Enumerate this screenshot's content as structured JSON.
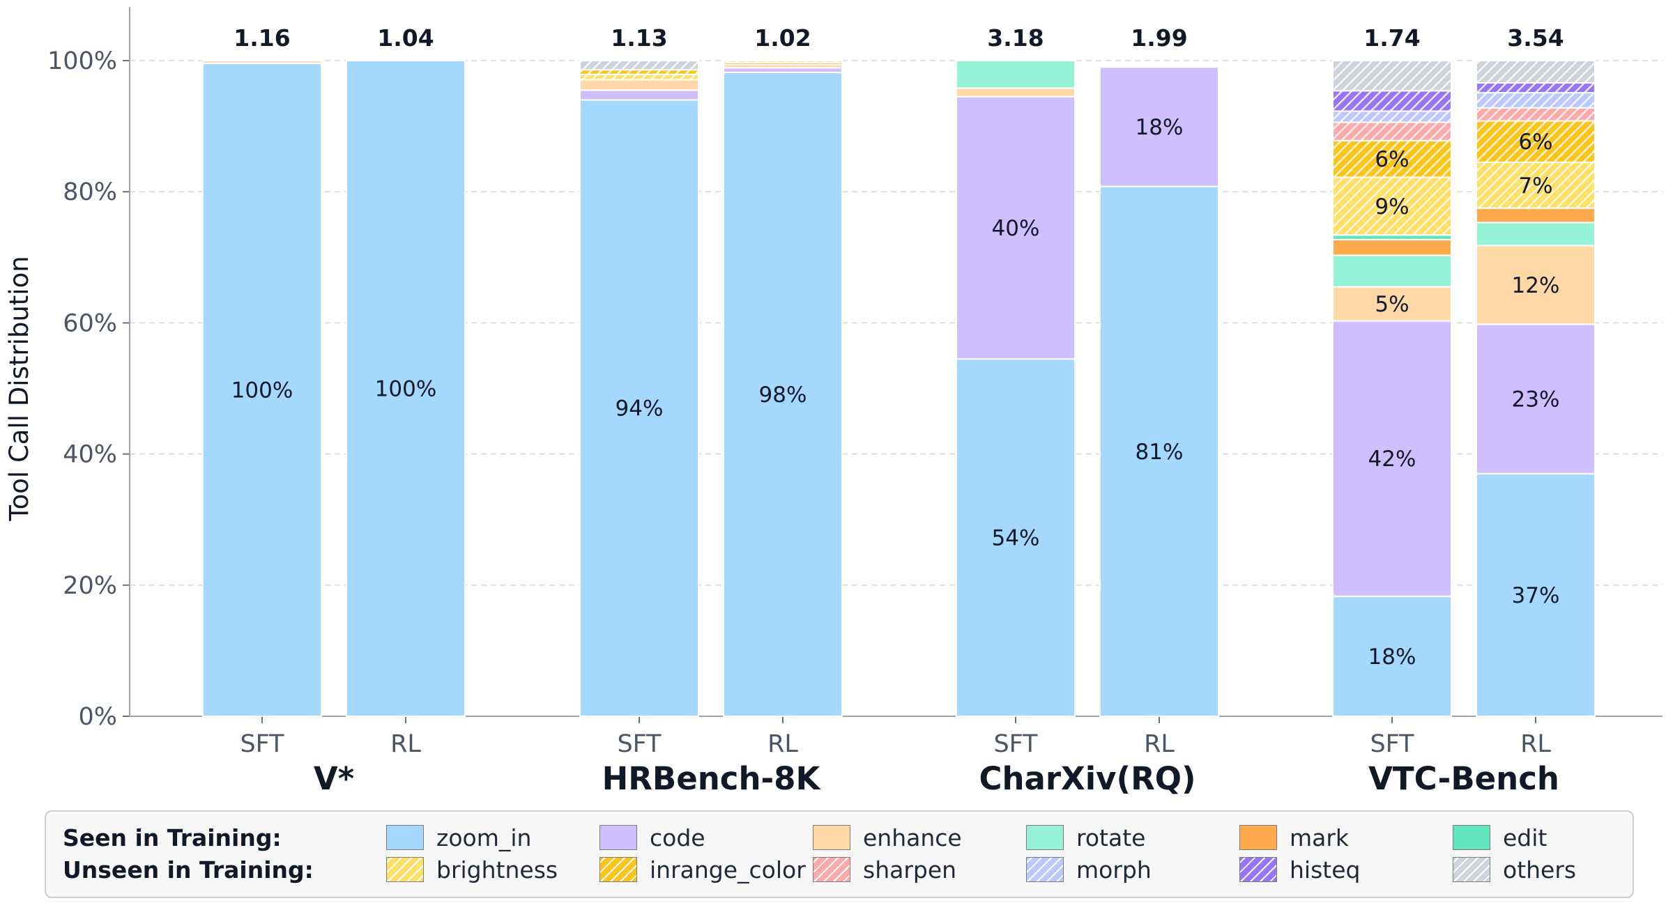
{
  "chart_data": {
    "type": "bar",
    "stacked": true,
    "ylabel": "Tool Call Distribution",
    "yticks": [
      "0%",
      "20%",
      "40%",
      "60%",
      "80%",
      "100%"
    ],
    "ylim": [
      0,
      100
    ],
    "grid": "y-dashed",
    "legend_placement": "bottom",
    "groups": [
      {
        "name": "V*",
        "bars": [
          {
            "label": "SFT",
            "total": "1.16",
            "segments": [
              [
                "zoom_in",
                99.6,
                "100%"
              ],
              [
                "enhance",
                0.4,
                ""
              ]
            ]
          },
          {
            "label": "RL",
            "total": "1.04",
            "segments": [
              [
                "zoom_in",
                100,
                "100%"
              ]
            ]
          }
        ]
      },
      {
        "name": "HRBench-8K",
        "bars": [
          {
            "label": "SFT",
            "total": "1.13",
            "segments": [
              [
                "zoom_in",
                94,
                "94%"
              ],
              [
                "code",
                1.5,
                ""
              ],
              [
                "enhance",
                1.6,
                ""
              ],
              [
                "brightness",
                0.8,
                ""
              ],
              [
                "inrange_color",
                0.7,
                ""
              ],
              [
                "others",
                1.4,
                ""
              ]
            ]
          },
          {
            "label": "RL",
            "total": "1.02",
            "segments": [
              [
                "zoom_in",
                98.2,
                "98%"
              ],
              [
                "code",
                0.7,
                ""
              ],
              [
                "enhance",
                0.5,
                ""
              ],
              [
                "mark",
                0.3,
                ""
              ],
              [
                "brightness",
                0.3,
                ""
              ]
            ]
          }
        ]
      },
      {
        "name": "CharXiv(RQ)",
        "bars": [
          {
            "label": "SFT",
            "total": "3.18",
            "segments": [
              [
                "zoom_in",
                54.5,
                "54%"
              ],
              [
                "code",
                40,
                "40%"
              ],
              [
                "enhance",
                1.3,
                ""
              ],
              [
                "rotate",
                4.2,
                ""
              ]
            ]
          },
          {
            "label": "RL",
            "total": "1.99",
            "segments": [
              [
                "zoom_in",
                80.8,
                "81%"
              ],
              [
                "code",
                18.2,
                "18%"
              ]
            ]
          }
        ]
      },
      {
        "name": "VTC-Bench",
        "bars": [
          {
            "label": "SFT",
            "total": "1.74",
            "segments": [
              [
                "zoom_in",
                18.3,
                "18%"
              ],
              [
                "code",
                42,
                "42%"
              ],
              [
                "enhance",
                5.2,
                "5%"
              ],
              [
                "rotate",
                4.8,
                ""
              ],
              [
                "mark",
                2.4,
                ""
              ],
              [
                "edit",
                0.7,
                ""
              ],
              [
                "brightness",
                8.8,
                "9%"
              ],
              [
                "inrange_color",
                5.6,
                "6%"
              ],
              [
                "sharpen",
                2.8,
                ""
              ],
              [
                "morph",
                1.7,
                ""
              ],
              [
                "histeq",
                3.1,
                ""
              ],
              [
                "others",
                4.6,
                ""
              ]
            ]
          },
          {
            "label": "RL",
            "total": "3.54",
            "segments": [
              [
                "zoom_in",
                37,
                "37%"
              ],
              [
                "code",
                22.8,
                "23%"
              ],
              [
                "enhance",
                12,
                "12%"
              ],
              [
                "rotate",
                3.5,
                ""
              ],
              [
                "mark",
                2.2,
                ""
              ],
              [
                "brightness",
                7,
                "7%"
              ],
              [
                "inrange_color",
                6.3,
                "6%"
              ],
              [
                "sharpen",
                2,
                ""
              ],
              [
                "morph",
                2.3,
                ""
              ],
              [
                "histeq",
                1.5,
                ""
              ],
              [
                "others",
                3.4,
                ""
              ]
            ]
          }
        ]
      }
    ]
  },
  "legend": {
    "rows": [
      {
        "heading": "Seen in Training:",
        "items": [
          "zoom_in",
          "code",
          "enhance",
          "rotate",
          "mark",
          "edit"
        ]
      },
      {
        "heading": "Unseen in Training:",
        "items": [
          "brightness",
          "inrange_color",
          "sharpen",
          "morph",
          "histeq",
          "others"
        ]
      }
    ]
  },
  "categories": {
    "zoom_in": {
      "color": "#a5d8ff",
      "hatch": false
    },
    "code": {
      "color": "#d0bfff",
      "hatch": false
    },
    "enhance": {
      "color": "#ffd8a8",
      "hatch": false
    },
    "rotate": {
      "color": "#96f2d7",
      "hatch": false
    },
    "mark": {
      "color": "#ffa94d",
      "hatch": false
    },
    "edit": {
      "color": "#63e6be",
      "hatch": false
    },
    "brightness": {
      "color": "#ffe066",
      "hatch": true
    },
    "inrange_color": {
      "color": "#fcc419",
      "hatch": true
    },
    "sharpen": {
      "color": "#ffa8a8",
      "hatch": true
    },
    "morph": {
      "color": "#bac8ff",
      "hatch": true
    },
    "histeq": {
      "color": "#9775fa",
      "hatch": true
    },
    "others": {
      "color": "#ced4da",
      "hatch": true
    }
  }
}
